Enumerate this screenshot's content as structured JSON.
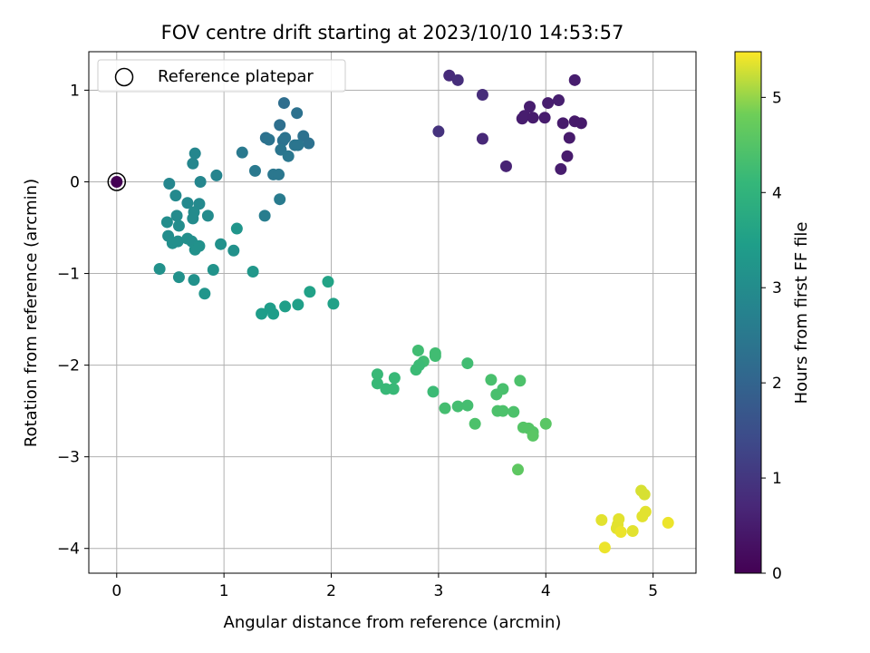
{
  "chart_data": {
    "type": "scatter",
    "title": "FOV centre drift starting at 2023/10/10 14:53:57",
    "xlabel": "Angular distance from reference (arcmin)",
    "ylabel": "Rotation from reference (arcmin)",
    "xlim": [
      -0.26,
      5.4
    ],
    "ylim": [
      -4.27,
      1.42
    ],
    "xticks": [
      0,
      1,
      2,
      3,
      4,
      5
    ],
    "yticks": [
      1,
      0,
      -1,
      -2,
      -3,
      -4
    ],
    "grid": true,
    "legend": {
      "placement": "upper-left",
      "label": "Reference platepar"
    },
    "reference_point": {
      "x": 0,
      "y": 0
    },
    "colorbar": {
      "label": "Hours from first FF file",
      "range": [
        0,
        5.48
      ],
      "ticks": [
        0,
        1,
        2,
        3,
        4,
        5
      ],
      "colormap": "viridis"
    },
    "points": [
      {
        "x": 0.0,
        "y": 0.0,
        "c": 0.0
      },
      {
        "x": 3.1,
        "y": 1.16,
        "c": 0.75
      },
      {
        "x": 3.18,
        "y": 1.11,
        "c": 0.8
      },
      {
        "x": 3.41,
        "y": 0.95,
        "c": 0.78
      },
      {
        "x": 3.0,
        "y": 0.55,
        "c": 0.9
      },
      {
        "x": 3.41,
        "y": 0.47,
        "c": 0.7
      },
      {
        "x": 3.63,
        "y": 0.17,
        "c": 0.6
      },
      {
        "x": 3.78,
        "y": 0.69,
        "c": 0.5
      },
      {
        "x": 3.8,
        "y": 0.72,
        "c": 0.5
      },
      {
        "x": 3.85,
        "y": 0.82,
        "c": 0.5
      },
      {
        "x": 3.88,
        "y": 0.7,
        "c": 0.48
      },
      {
        "x": 3.99,
        "y": 0.7,
        "c": 0.48
      },
      {
        "x": 4.02,
        "y": 0.86,
        "c": 0.5
      },
      {
        "x": 4.12,
        "y": 0.89,
        "c": 0.52
      },
      {
        "x": 4.27,
        "y": 1.11,
        "c": 0.5
      },
      {
        "x": 4.16,
        "y": 0.64,
        "c": 0.45
      },
      {
        "x": 4.27,
        "y": 0.66,
        "c": 0.42
      },
      {
        "x": 4.33,
        "y": 0.64,
        "c": 0.42
      },
      {
        "x": 4.22,
        "y": 0.48,
        "c": 0.45
      },
      {
        "x": 4.2,
        "y": 0.28,
        "c": 0.45
      },
      {
        "x": 4.14,
        "y": 0.14,
        "c": 0.5
      },
      {
        "x": 1.56,
        "y": 0.86,
        "c": 2.2
      },
      {
        "x": 1.68,
        "y": 0.75,
        "c": 2.3
      },
      {
        "x": 1.52,
        "y": 0.62,
        "c": 2.25
      },
      {
        "x": 1.74,
        "y": 0.5,
        "c": 2.3
      },
      {
        "x": 1.39,
        "y": 0.48,
        "c": 2.3
      },
      {
        "x": 1.42,
        "y": 0.46,
        "c": 2.35
      },
      {
        "x": 1.55,
        "y": 0.45,
        "c": 2.3
      },
      {
        "x": 1.57,
        "y": 0.48,
        "c": 2.35
      },
      {
        "x": 1.79,
        "y": 0.42,
        "c": 2.3
      },
      {
        "x": 1.66,
        "y": 0.4,
        "c": 2.4
      },
      {
        "x": 1.69,
        "y": 0.4,
        "c": 2.4
      },
      {
        "x": 1.53,
        "y": 0.35,
        "c": 2.4
      },
      {
        "x": 1.6,
        "y": 0.28,
        "c": 2.45
      },
      {
        "x": 1.17,
        "y": 0.32,
        "c": 2.5
      },
      {
        "x": 1.29,
        "y": 0.12,
        "c": 2.5
      },
      {
        "x": 1.46,
        "y": 0.08,
        "c": 2.45
      },
      {
        "x": 1.51,
        "y": 0.08,
        "c": 2.45
      },
      {
        "x": 1.52,
        "y": -0.19,
        "c": 2.55
      },
      {
        "x": 1.38,
        "y": -0.37,
        "c": 2.6
      },
      {
        "x": 0.73,
        "y": 0.31,
        "c": 2.85
      },
      {
        "x": 0.71,
        "y": 0.2,
        "c": 2.85
      },
      {
        "x": 0.93,
        "y": 0.07,
        "c": 2.8
      },
      {
        "x": 0.49,
        "y": -0.02,
        "c": 2.85
      },
      {
        "x": 0.78,
        "y": 0.0,
        "c": 2.85
      },
      {
        "x": 0.55,
        "y": -0.15,
        "c": 2.9
      },
      {
        "x": 0.66,
        "y": -0.23,
        "c": 2.9
      },
      {
        "x": 0.77,
        "y": -0.24,
        "c": 2.9
      },
      {
        "x": 0.72,
        "y": -0.33,
        "c": 2.95
      },
      {
        "x": 0.85,
        "y": -0.37,
        "c": 2.95
      },
      {
        "x": 0.56,
        "y": -0.37,
        "c": 2.95
      },
      {
        "x": 0.71,
        "y": -0.4,
        "c": 2.95
      },
      {
        "x": 0.47,
        "y": -0.44,
        "c": 3.0
      },
      {
        "x": 0.58,
        "y": -0.48,
        "c": 3.0
      },
      {
        "x": 0.48,
        "y": -0.59,
        "c": 3.0
      },
      {
        "x": 0.52,
        "y": -0.67,
        "c": 3.05
      },
      {
        "x": 0.57,
        "y": -0.65,
        "c": 3.05
      },
      {
        "x": 0.66,
        "y": -0.62,
        "c": 3.05
      },
      {
        "x": 0.7,
        "y": -0.65,
        "c": 3.05
      },
      {
        "x": 0.73,
        "y": -0.74,
        "c": 3.1
      },
      {
        "x": 0.77,
        "y": -0.7,
        "c": 3.1
      },
      {
        "x": 0.97,
        "y": -0.68,
        "c": 3.1
      },
      {
        "x": 1.09,
        "y": -0.75,
        "c": 3.1
      },
      {
        "x": 1.12,
        "y": -0.51,
        "c": 3.2
      },
      {
        "x": 0.4,
        "y": -0.95,
        "c": 3.1
      },
      {
        "x": 0.58,
        "y": -1.04,
        "c": 3.1
      },
      {
        "x": 0.72,
        "y": -1.07,
        "c": 3.1
      },
      {
        "x": 0.9,
        "y": -0.96,
        "c": 3.15
      },
      {
        "x": 0.82,
        "y": -1.22,
        "c": 3.2
      },
      {
        "x": 1.27,
        "y": -0.98,
        "c": 3.25
      },
      {
        "x": 1.35,
        "y": -1.44,
        "c": 3.4
      },
      {
        "x": 1.43,
        "y": -1.38,
        "c": 3.4
      },
      {
        "x": 1.46,
        "y": -1.44,
        "c": 3.4
      },
      {
        "x": 1.57,
        "y": -1.36,
        "c": 3.45
      },
      {
        "x": 1.69,
        "y": -1.34,
        "c": 3.45
      },
      {
        "x": 1.8,
        "y": -1.2,
        "c": 3.5
      },
      {
        "x": 1.97,
        "y": -1.09,
        "c": 3.55
      },
      {
        "x": 2.02,
        "y": -1.33,
        "c": 3.5
      },
      {
        "x": 2.81,
        "y": -1.84,
        "c": 4.25
      },
      {
        "x": 2.97,
        "y": -1.87,
        "c": 4.25
      },
      {
        "x": 2.97,
        "y": -1.9,
        "c": 4.25
      },
      {
        "x": 2.86,
        "y": -1.96,
        "c": 4.25
      },
      {
        "x": 2.82,
        "y": -2.0,
        "c": 4.2
      },
      {
        "x": 2.79,
        "y": -2.05,
        "c": 4.2
      },
      {
        "x": 3.27,
        "y": -1.98,
        "c": 4.25
      },
      {
        "x": 2.43,
        "y": -2.1,
        "c": 4.15
      },
      {
        "x": 2.43,
        "y": -2.2,
        "c": 4.15
      },
      {
        "x": 2.51,
        "y": -2.26,
        "c": 4.15
      },
      {
        "x": 2.58,
        "y": -2.26,
        "c": 4.15
      },
      {
        "x": 2.59,
        "y": -2.14,
        "c": 4.15
      },
      {
        "x": 2.95,
        "y": -2.29,
        "c": 4.2
      },
      {
        "x": 3.06,
        "y": -2.47,
        "c": 4.3
      },
      {
        "x": 3.18,
        "y": -2.45,
        "c": 4.3
      },
      {
        "x": 3.27,
        "y": -2.44,
        "c": 4.3
      },
      {
        "x": 3.34,
        "y": -2.64,
        "c": 4.4
      },
      {
        "x": 3.49,
        "y": -2.16,
        "c": 4.35
      },
      {
        "x": 3.54,
        "y": -2.32,
        "c": 4.35
      },
      {
        "x": 3.6,
        "y": -2.26,
        "c": 4.35
      },
      {
        "x": 3.55,
        "y": -2.5,
        "c": 4.4
      },
      {
        "x": 3.6,
        "y": -2.5,
        "c": 4.4
      },
      {
        "x": 3.7,
        "y": -2.51,
        "c": 4.4
      },
      {
        "x": 3.76,
        "y": -2.17,
        "c": 4.4
      },
      {
        "x": 3.79,
        "y": -2.68,
        "c": 4.5
      },
      {
        "x": 3.84,
        "y": -2.69,
        "c": 4.5
      },
      {
        "x": 3.88,
        "y": -2.73,
        "c": 4.5
      },
      {
        "x": 3.88,
        "y": -2.77,
        "c": 4.55
      },
      {
        "x": 4.0,
        "y": -2.64,
        "c": 4.55
      },
      {
        "x": 3.74,
        "y": -3.14,
        "c": 4.6
      },
      {
        "x": 4.52,
        "y": -3.69,
        "c": 5.35
      },
      {
        "x": 4.55,
        "y": -3.99,
        "c": 5.4
      },
      {
        "x": 4.67,
        "y": -3.74,
        "c": 5.35
      },
      {
        "x": 4.68,
        "y": -3.68,
        "c": 5.35
      },
      {
        "x": 4.66,
        "y": -3.78,
        "c": 5.35
      },
      {
        "x": 4.7,
        "y": -3.82,
        "c": 5.4
      },
      {
        "x": 4.81,
        "y": -3.81,
        "c": 5.35
      },
      {
        "x": 4.89,
        "y": -3.37,
        "c": 5.3
      },
      {
        "x": 4.92,
        "y": -3.41,
        "c": 5.3
      },
      {
        "x": 4.9,
        "y": -3.65,
        "c": 5.35
      },
      {
        "x": 4.93,
        "y": -3.6,
        "c": 5.35
      },
      {
        "x": 5.14,
        "y": -3.72,
        "c": 5.4
      }
    ]
  }
}
